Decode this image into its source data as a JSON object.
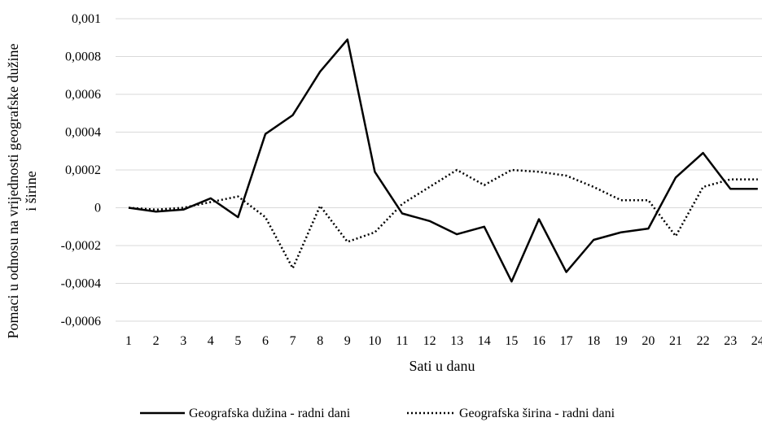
{
  "chart_data": {
    "type": "line",
    "title": "",
    "xlabel": "Sati u danu",
    "ylabel_lines": [
      "Pomaci u odnosu na vrijednosti geografske dužine",
      "i širine"
    ],
    "ylim": [
      -0.0006,
      0.001
    ],
    "yticks": [
      "0,001",
      "0,0008",
      "0,0006",
      "0,0004",
      "0,0002",
      "0",
      "-0,0002",
      "-0,0004",
      "-0,0006"
    ],
    "ytick_values": [
      0.001,
      0.0008,
      0.0006,
      0.0004,
      0.0002,
      0,
      -0.0002,
      -0.0004,
      -0.0006
    ],
    "categories": [
      "1",
      "2",
      "3",
      "4",
      "5",
      "6",
      "7",
      "8",
      "9",
      "10",
      "11",
      "12",
      "13",
      "14",
      "15",
      "16",
      "17",
      "18",
      "19",
      "20",
      "21",
      "22",
      "23",
      "24"
    ],
    "grid": true,
    "legend_position": "bottom",
    "series": [
      {
        "name": "Geografska dužina - radni dani",
        "style": "solid",
        "color": "#000000",
        "values": [
          0,
          -2e-05,
          -1e-05,
          5e-05,
          -5e-05,
          0.00039,
          0.00049,
          0.00072,
          0.00089,
          0.00019,
          -3e-05,
          -7e-05,
          -0.00014,
          -0.0001,
          -0.00039,
          -6e-05,
          -0.00034,
          -0.00017,
          -0.00013,
          -0.00011,
          0.00016,
          0.00029,
          0.0001,
          0.0001
        ]
      },
      {
        "name": "Geografska širina - radni dani",
        "style": "dotted",
        "color": "#000000",
        "values": [
          0,
          -1e-05,
          0.0,
          3e-05,
          6e-05,
          -5e-05,
          -0.00032,
          1e-05,
          -0.00018,
          -0.00013,
          2e-05,
          0.00011,
          0.0002,
          0.00012,
          0.0002,
          0.00019,
          0.00017,
          0.00011,
          4e-05,
          4e-05,
          -0.00015,
          0.00011,
          0.00015,
          0.00015
        ]
      }
    ]
  }
}
